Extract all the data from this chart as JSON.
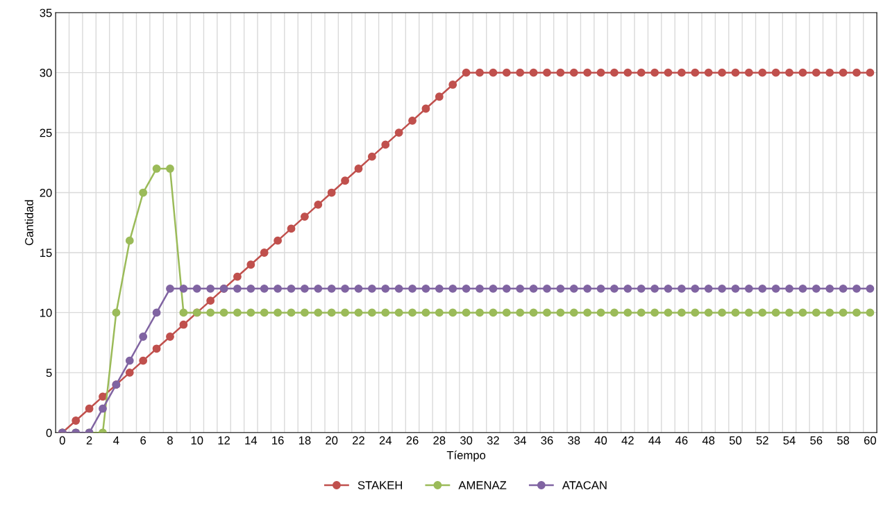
{
  "chart_data": {
    "type": "line",
    "xlabel": "Tíempo",
    "ylabel": "Cantidad",
    "categories": [
      "0",
      null,
      "2",
      null,
      "4",
      null,
      "6",
      null,
      "8",
      null,
      "10",
      null,
      "12",
      null,
      "14",
      null,
      "16",
      null,
      "18",
      null,
      "20",
      null,
      "22",
      null,
      "24",
      null,
      "26",
      null,
      "28",
      null,
      "30",
      null,
      "32",
      null,
      "34",
      null,
      "36",
      null,
      "38",
      null,
      "40",
      null,
      "42",
      null,
      "44",
      null,
      "46",
      null,
      "48",
      null,
      "50",
      null,
      "52",
      null,
      "54",
      null,
      "56",
      null,
      "58",
      null,
      "60"
    ],
    "series": [
      {
        "name": "STAKEH",
        "color": "#c0504d",
        "values": [
          0,
          1,
          2,
          3,
          4,
          5,
          6,
          7,
          8,
          9,
          10,
          11,
          12,
          13,
          14,
          15,
          16,
          17,
          18,
          19,
          20,
          21,
          22,
          23,
          24,
          25,
          26,
          27,
          28,
          29,
          30,
          30,
          30,
          30,
          30,
          30,
          30,
          30,
          30,
          30,
          30,
          30,
          30,
          30,
          30,
          30,
          30,
          30,
          30,
          30,
          30,
          30,
          30,
          30,
          30,
          30,
          30,
          30,
          30,
          30,
          30
        ]
      },
      {
        "name": "AMENAZ",
        "color": "#9bbb59",
        "values": [
          0,
          0,
          0,
          0,
          10,
          16,
          20,
          22,
          22,
          10,
          10,
          10,
          10,
          10,
          10,
          10,
          10,
          10,
          10,
          10,
          10,
          10,
          10,
          10,
          10,
          10,
          10,
          10,
          10,
          10,
          10,
          10,
          10,
          10,
          10,
          10,
          10,
          10,
          10,
          10,
          10,
          10,
          10,
          10,
          10,
          10,
          10,
          10,
          10,
          10,
          10,
          10,
          10,
          10,
          10,
          10,
          10,
          10,
          10,
          10,
          10
        ]
      },
      {
        "name": "ATACAN",
        "color": "#8064a2",
        "values": [
          0,
          0,
          0,
          2,
          4,
          6,
          8,
          10,
          12,
          12,
          12,
          12,
          12,
          12,
          12,
          12,
          12,
          12,
          12,
          12,
          12,
          12,
          12,
          12,
          12,
          12,
          12,
          12,
          12,
          12,
          12,
          12,
          12,
          12,
          12,
          12,
          12,
          12,
          12,
          12,
          12,
          12,
          12,
          12,
          12,
          12,
          12,
          12,
          12,
          12,
          12,
          12,
          12,
          12,
          12,
          12,
          12,
          12,
          12,
          12,
          12
        ]
      }
    ],
    "ylim": [
      0,
      35
    ],
    "yticks": [
      0,
      5,
      10,
      15,
      20,
      25,
      30,
      35
    ],
    "grid": true,
    "legend": "bottom",
    "marker": "circle",
    "line_style": "solid"
  }
}
